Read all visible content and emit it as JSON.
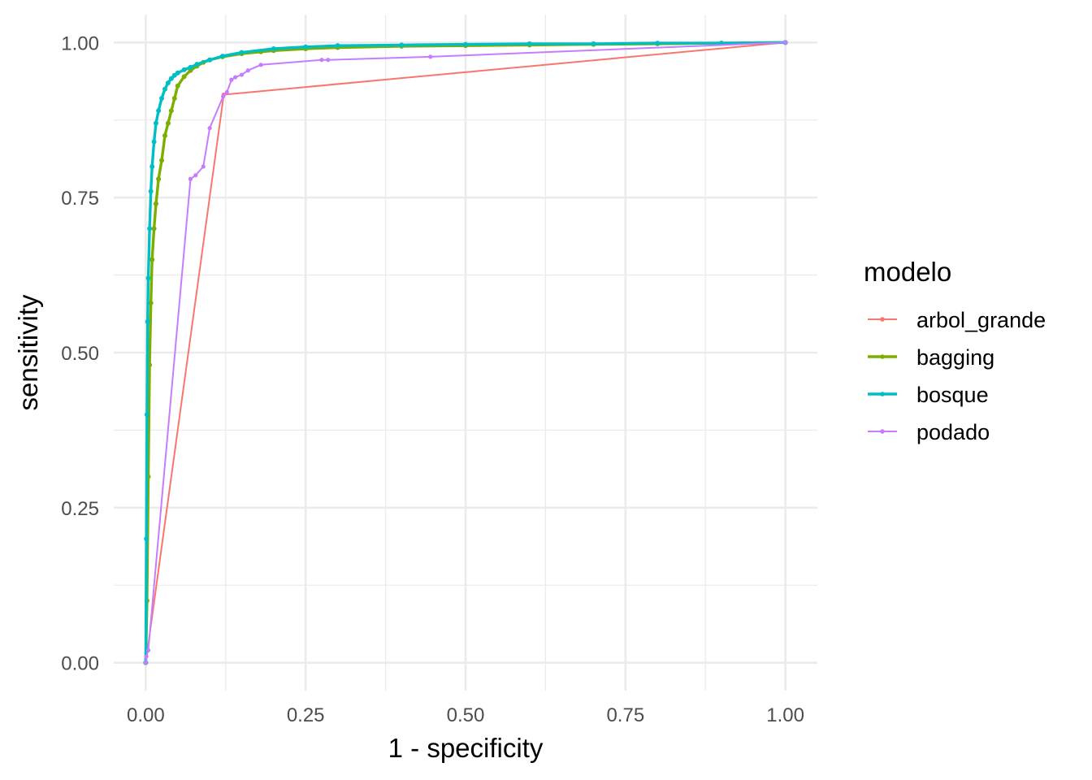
{
  "chart_data": {
    "type": "line",
    "xlabel": "1 - specificity",
    "ylabel": "sensitivity",
    "xlim": [
      -0.05,
      1.05
    ],
    "ylim": [
      -0.045,
      1.045
    ],
    "x_ticks": [
      0,
      0.25,
      0.5,
      0.75,
      1
    ],
    "x_tick_labels": [
      "0.00",
      "0.25",
      "0.50",
      "0.75",
      "1.00"
    ],
    "y_ticks": [
      0,
      0.25,
      0.5,
      0.75,
      1
    ],
    "y_tick_labels": [
      "0.00",
      "0.25",
      "0.50",
      "0.75",
      "1.00"
    ],
    "grid": true,
    "legend": {
      "title": "modelo",
      "position": "right"
    },
    "series": [
      {
        "name": "arbol_grande",
        "color": "#F8766D",
        "x": [
          0,
          0.122,
          1
        ],
        "y": [
          0,
          0.916,
          1
        ]
      },
      {
        "name": "bagging",
        "color": "#7CAE00",
        "x": [
          0,
          0.002,
          0.004,
          0.006,
          0.008,
          0.01,
          0.013,
          0.016,
          0.02,
          0.025,
          0.03,
          0.035,
          0.04,
          0.045,
          0.05,
          0.06,
          0.07,
          0.08,
          0.09,
          0.1,
          0.12,
          0.15,
          0.18,
          0.2,
          0.25,
          0.3,
          0.4,
          0.5,
          0.6,
          0.7,
          0.8,
          0.9,
          1
        ],
        "y": [
          0,
          0.1,
          0.3,
          0.48,
          0.58,
          0.65,
          0.7,
          0.74,
          0.78,
          0.81,
          0.85,
          0.87,
          0.89,
          0.91,
          0.93,
          0.945,
          0.955,
          0.962,
          0.968,
          0.972,
          0.977,
          0.982,
          0.985,
          0.987,
          0.99,
          0.992,
          0.994,
          0.995,
          0.996,
          0.997,
          0.998,
          0.999,
          1
        ]
      },
      {
        "name": "bosque",
        "color": "#00BFC4",
        "x": [
          0,
          0.001,
          0.002,
          0.003,
          0.004,
          0.006,
          0.008,
          0.01,
          0.013,
          0.016,
          0.02,
          0.025,
          0.03,
          0.035,
          0.04,
          0.045,
          0.05,
          0.06,
          0.07,
          0.08,
          0.1,
          0.12,
          0.15,
          0.2,
          0.25,
          0.3,
          0.4,
          0.5,
          0.6,
          0.7,
          0.8,
          0.9,
          1
        ],
        "y": [
          0,
          0.2,
          0.4,
          0.55,
          0.62,
          0.7,
          0.76,
          0.8,
          0.84,
          0.87,
          0.89,
          0.91,
          0.925,
          0.935,
          0.942,
          0.947,
          0.951,
          0.956,
          0.96,
          0.965,
          0.972,
          0.978,
          0.984,
          0.99,
          0.993,
          0.995,
          0.996,
          0.997,
          0.998,
          0.998,
          0.999,
          0.999,
          1
        ]
      },
      {
        "name": "podado",
        "color": "#C77CFF",
        "x": [
          0,
          0.001,
          0.004,
          0.07,
          0.078,
          0.09,
          0.1,
          0.121,
          0.127,
          0.134,
          0.14,
          0.15,
          0.16,
          0.18,
          0.275,
          0.285,
          0.445,
          1
        ],
        "y": [
          0,
          0.01,
          0.02,
          0.78,
          0.786,
          0.8,
          0.862,
          0.913,
          0.92,
          0.94,
          0.944,
          0.948,
          0.955,
          0.964,
          0.972,
          0.972,
          0.977,
          1
        ]
      }
    ]
  }
}
